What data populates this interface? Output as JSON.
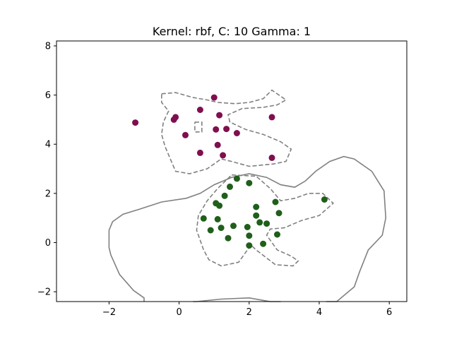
{
  "chart_data": {
    "type": "scatter",
    "title": "Kernel: rbf, C: 10 Gamma: 1",
    "xlabel": "",
    "ylabel": "",
    "xlim": [
      -3.5,
      6.5
    ],
    "ylim": [
      -2.4,
      8.2
    ],
    "xticks": [
      -2,
      0,
      2,
      4,
      6
    ],
    "yticks": [
      -2,
      0,
      2,
      4,
      6,
      8
    ],
    "xtick_labels": [
      "−2",
      "0",
      "2",
      "4",
      "6"
    ],
    "ytick_labels": [
      "−2",
      "0",
      "2",
      "4",
      "6",
      "8"
    ],
    "grid": false,
    "colors": {
      "class_a": "#7f0f4f",
      "class_b": "#1f5f1a",
      "decision_boundary": "#808080",
      "margin": "#808080"
    },
    "series": [
      {
        "color": "#7f0f4f",
        "points": [
          [
            -1.25,
            4.88
          ],
          [
            -0.1,
            5.1
          ],
          [
            -0.15,
            5.0
          ],
          [
            0.18,
            4.37
          ],
          [
            0.6,
            5.4
          ],
          [
            1.0,
            5.9
          ],
          [
            1.15,
            5.18
          ],
          [
            1.05,
            4.6
          ],
          [
            1.35,
            4.62
          ],
          [
            1.65,
            4.45
          ],
          [
            1.1,
            3.97
          ],
          [
            0.6,
            3.65
          ],
          [
            1.25,
            3.55
          ],
          [
            2.65,
            5.1
          ],
          [
            2.65,
            3.45
          ]
        ]
      },
      {
        "color": "#1f5f1a",
        "points": [
          [
            1.65,
            2.6
          ],
          [
            2.0,
            2.42
          ],
          [
            1.45,
            2.27
          ],
          [
            1.3,
            1.9
          ],
          [
            1.05,
            1.6
          ],
          [
            1.15,
            1.5
          ],
          [
            0.7,
            0.98
          ],
          [
            1.1,
            0.95
          ],
          [
            1.2,
            0.6
          ],
          [
            0.9,
            0.5
          ],
          [
            1.4,
            0.18
          ],
          [
            1.55,
            0.68
          ],
          [
            1.95,
            0.63
          ],
          [
            2.0,
            0.28
          ],
          [
            2.0,
            -0.12
          ],
          [
            2.2,
            1.45
          ],
          [
            2.2,
            1.1
          ],
          [
            2.3,
            0.82
          ],
          [
            2.5,
            0.77
          ],
          [
            2.4,
            -0.05
          ],
          [
            2.75,
            1.65
          ],
          [
            2.85,
            1.2
          ],
          [
            2.8,
            0.33
          ],
          [
            4.15,
            1.75
          ]
        ]
      }
    ],
    "decision_boundary": [
      [
        2.9,
        -2.6
      ],
      [
        2.6,
        -2.4
      ],
      [
        2.0,
        -2.25
      ],
      [
        1.2,
        -2.3
      ],
      [
        0.5,
        -2.45
      ],
      [
        0.4,
        -2.6
      ]
    ],
    "decision_boundary_outer": [
      [
        -1.0,
        -2.6
      ],
      [
        -1.0,
        -2.25
      ],
      [
        -1.3,
        -1.95
      ],
      [
        -1.7,
        -1.3
      ],
      [
        -1.95,
        -0.5
      ],
      [
        -2.0,
        -0.2
      ],
      [
        -2.0,
        0.5
      ],
      [
        -1.9,
        0.85
      ],
      [
        -1.6,
        1.15
      ],
      [
        -1.15,
        1.35
      ],
      [
        -0.5,
        1.65
      ],
      [
        0.2,
        1.8
      ],
      [
        0.6,
        2.0
      ],
      [
        1.0,
        2.35
      ],
      [
        1.5,
        2.65
      ],
      [
        2.0,
        2.8
      ],
      [
        2.5,
        2.65
      ],
      [
        2.9,
        2.35
      ],
      [
        3.3,
        2.25
      ],
      [
        3.6,
        2.5
      ],
      [
        3.9,
        2.9
      ],
      [
        4.3,
        3.3
      ],
      [
        4.7,
        3.5
      ],
      [
        5.0,
        3.4
      ],
      [
        5.5,
        2.9
      ],
      [
        5.85,
        2.1
      ],
      [
        5.9,
        1.0
      ],
      [
        5.8,
        0.3
      ],
      [
        5.4,
        -0.3
      ],
      [
        5.15,
        -1.2
      ],
      [
        5.0,
        -1.8
      ],
      [
        4.5,
        -2.4
      ],
      [
        4.2,
        -2.6
      ]
    ],
    "margins": [
      [
        [
          -0.5,
          6.05
        ],
        [
          -0.1,
          6.1
        ],
        [
          0.4,
          5.9
        ],
        [
          0.8,
          5.8
        ],
        [
          1.1,
          5.7
        ],
        [
          1.6,
          5.65
        ],
        [
          2.0,
          5.7
        ],
        [
          2.4,
          5.85
        ],
        [
          2.65,
          6.2
        ],
        [
          3.05,
          5.8
        ],
        [
          2.8,
          5.6
        ],
        [
          2.4,
          5.5
        ],
        [
          1.8,
          5.45
        ],
        [
          1.4,
          5.2
        ],
        [
          1.45,
          4.9
        ],
        [
          1.9,
          4.6
        ],
        [
          2.4,
          4.4
        ],
        [
          2.9,
          4.1
        ],
        [
          3.2,
          3.8
        ],
        [
          3.05,
          3.3
        ],
        [
          2.7,
          3.2
        ],
        [
          2.0,
          3.1
        ],
        [
          1.5,
          3.3
        ],
        [
          1.2,
          3.4
        ],
        [
          0.8,
          3.0
        ],
        [
          0.3,
          2.8
        ],
        [
          -0.1,
          2.9
        ],
        [
          -0.25,
          3.4
        ],
        [
          -0.4,
          3.9
        ],
        [
          -0.5,
          4.4
        ],
        [
          -0.45,
          4.9
        ],
        [
          -0.3,
          5.35
        ],
        [
          -0.5,
          5.7
        ],
        [
          -0.5,
          6.05
        ]
      ],
      [
        [
          0.45,
          4.9
        ],
        [
          0.65,
          4.9
        ],
        [
          0.65,
          4.5
        ],
        [
          0.45,
          4.5
        ],
        [
          0.45,
          4.9
        ]
      ],
      [
        [
          1.5,
          2.75
        ],
        [
          2.2,
          2.7
        ],
        [
          2.6,
          2.2
        ],
        [
          2.9,
          1.7
        ],
        [
          3.3,
          1.8
        ],
        [
          3.7,
          2.0
        ],
        [
          4.1,
          2.0
        ],
        [
          4.4,
          1.6
        ],
        [
          4.0,
          1.1
        ],
        [
          3.5,
          0.9
        ],
        [
          3.0,
          0.6
        ],
        [
          2.6,
          0.55
        ],
        [
          2.5,
          0.3
        ],
        [
          2.8,
          -0.3
        ],
        [
          3.2,
          -0.55
        ],
        [
          3.4,
          -0.75
        ],
        [
          3.25,
          -0.95
        ],
        [
          2.75,
          -0.9
        ],
        [
          2.2,
          -0.3
        ],
        [
          2.05,
          -0.1
        ],
        [
          1.7,
          -0.8
        ],
        [
          1.2,
          -0.95
        ],
        [
          0.85,
          -0.7
        ],
        [
          0.7,
          -0.3
        ],
        [
          0.5,
          0.5
        ],
        [
          0.55,
          1.1
        ],
        [
          0.8,
          1.7
        ],
        [
          1.1,
          2.2
        ],
        [
          1.5,
          2.75
        ]
      ]
    ]
  }
}
